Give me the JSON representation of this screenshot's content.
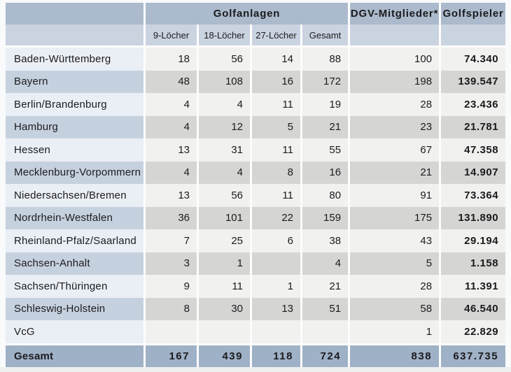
{
  "colors": {
    "header-dark": "#abbacc",
    "header-light": "#cad3e0",
    "row-light-label": "#eaeef5",
    "row-dark-label": "#c6d1df",
    "row-light-num": "#f1f1ef",
    "row-dark-num": "#d5d5d3",
    "total-bg": "#9fb1c6",
    "sep": "#fdfdfe",
    "text": "#1b1b1d"
  },
  "chart_data": {
    "type": "table",
    "column_groups": {
      "golfanlagen": "Golfanlagen",
      "dgv_mitglieder": "DGV-Mitglieder*",
      "golfspieler": "Golfspieler"
    },
    "subcolumns": [
      "9-Löcher",
      "18-Löcher",
      "27-Löcher",
      "Gesamt"
    ],
    "columns": [
      "9-Löcher",
      "18-Löcher",
      "27-Löcher",
      "Gesamt",
      "DGV-Mitglieder*",
      "Golfspieler"
    ],
    "rows": [
      {
        "label": "Baden-Württemberg",
        "values": [
          "18",
          "56",
          "14",
          "88",
          "100",
          "74.340"
        ]
      },
      {
        "label": "Bayern",
        "values": [
          "48",
          "108",
          "16",
          "172",
          "198",
          "139.547"
        ]
      },
      {
        "label": "Berlin/Brandenburg",
        "values": [
          "4",
          "4",
          "11",
          "19",
          "28",
          "23.436"
        ]
      },
      {
        "label": "Hamburg",
        "values": [
          "4",
          "12",
          "5",
          "21",
          "23",
          "21.781"
        ]
      },
      {
        "label": "Hessen",
        "values": [
          "13",
          "31",
          "11",
          "55",
          "67",
          "47.358"
        ]
      },
      {
        "label": "Mecklenburg-Vorpommern",
        "values": [
          "4",
          "4",
          "8",
          "16",
          "21",
          "14.907"
        ]
      },
      {
        "label": "Niedersachsen/Bremen",
        "values": [
          "13",
          "56",
          "11",
          "80",
          "91",
          "73.364"
        ]
      },
      {
        "label": "Nordrhein-Westfalen",
        "values": [
          "36",
          "101",
          "22",
          "159",
          "175",
          "131.890"
        ]
      },
      {
        "label": "Rheinland-Pfalz/Saarland",
        "values": [
          "7",
          "25",
          "6",
          "38",
          "43",
          "29.194"
        ]
      },
      {
        "label": "Sachsen-Anhalt",
        "values": [
          "3",
          "1",
          "",
          "4",
          "5",
          "1.158"
        ]
      },
      {
        "label": "Sachsen/Thüringen",
        "values": [
          "9",
          "11",
          "1",
          "21",
          "28",
          "11.391"
        ]
      },
      {
        "label": "Schleswig-Holstein",
        "values": [
          "8",
          "30",
          "13",
          "51",
          "58",
          "46.540"
        ]
      },
      {
        "label": "VcG",
        "values": [
          "",
          "",
          "",
          "",
          "1",
          "22.829"
        ]
      }
    ],
    "total": {
      "label": "Gesamt",
      "values": [
        "167",
        "439",
        "118",
        "724",
        "838",
        "637.735"
      ]
    }
  }
}
